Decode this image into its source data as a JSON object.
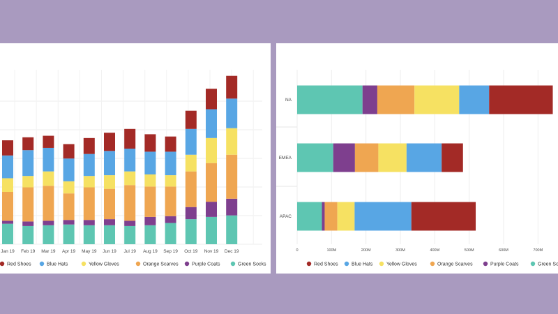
{
  "colors": {
    "Red Shoes": "#a32a26",
    "Blue Hats": "#58a6e4",
    "Yellow Gloves": "#f6e162",
    "Orange Scarves": "#efa651",
    "Purple Coats": "#7e3f8e",
    "Green Socks": "#5ec6b2"
  },
  "chart_data": [
    {
      "type": "bar",
      "stacked": true,
      "orientation": "vertical",
      "categories": [
        "Jan 19",
        "Feb 19",
        "Mar 19",
        "Apr 19",
        "May 19",
        "Jun 19",
        "Jul 19",
        "Aug 19",
        "Sep 19",
        "Oct 19",
        "Nov 19",
        "Dec 19"
      ],
      "series": [
        {
          "name": "Green Socks",
          "values": [
            27,
            24,
            25,
            26,
            25,
            25,
            24,
            25,
            28,
            33,
            36,
            38
          ]
        },
        {
          "name": "Purple Coats",
          "values": [
            4,
            6,
            6,
            6,
            7,
            8,
            7,
            11,
            9,
            16,
            20,
            22
          ]
        },
        {
          "name": "Orange Scarves",
          "values": [
            38,
            45,
            46,
            35,
            43,
            40,
            47,
            40,
            39,
            47,
            51,
            58
          ]
        },
        {
          "name": "Yellow Gloves",
          "values": [
            18,
            15,
            19,
            16,
            15,
            18,
            18,
            16,
            15,
            22,
            33,
            35
          ]
        },
        {
          "name": "Blue Hats",
          "values": [
            30,
            34,
            31,
            30,
            29,
            32,
            30,
            30,
            31,
            34,
            38,
            39
          ]
        },
        {
          "name": "Red Shoes",
          "values": [
            20,
            17,
            16,
            19,
            21,
            24,
            26,
            23,
            20,
            24,
            27,
            30
          ]
        }
      ],
      "ylim": [
        0,
        230
      ],
      "legend": [
        "Red Shoes",
        "Blue Hats",
        "Yellow Gloves",
        "Orange Scarves",
        "Purple Coats",
        "Green Socks"
      ],
      "legend_position": "bottom"
    },
    {
      "type": "bar",
      "stacked": true,
      "orientation": "horizontal",
      "categories": [
        "NA",
        "EMEA",
        "APAC"
      ],
      "series": [
        {
          "name": "Green Socks",
          "values": [
            190,
            105,
            72
          ]
        },
        {
          "name": "Purple Coats",
          "values": [
            43,
            63,
            8
          ]
        },
        {
          "name": "Orange Scarves",
          "values": [
            108,
            68,
            37
          ]
        },
        {
          "name": "Yellow Gloves",
          "values": [
            130,
            82,
            50
          ]
        },
        {
          "name": "Blue Hats",
          "values": [
            87,
            102,
            165
          ]
        },
        {
          "name": "Red Shoes",
          "values": [
            185,
            62,
            187
          ]
        }
      ],
      "xticks": [
        "0",
        "100M",
        "200M",
        "300M",
        "400M",
        "500M",
        "600M",
        "700M"
      ],
      "xlim": [
        0,
        750
      ],
      "legend": [
        "Red Shoes",
        "Blue Hats",
        "Yellow Gloves",
        "Orange Scarves",
        "Purple Coats",
        "Green Socks"
      ],
      "legend_position": "bottom"
    }
  ]
}
